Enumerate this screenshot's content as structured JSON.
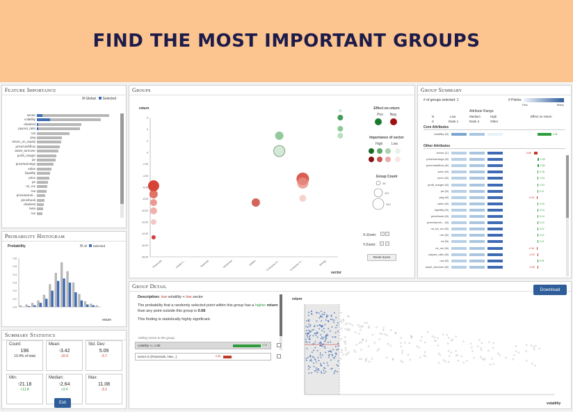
{
  "banner": {
    "title": "FIND THE MOST IMPORTANT GROUPS"
  },
  "feature_importance": {
    "title": "Feature Importance",
    "legend": {
      "global": "Global",
      "selected": "Selected"
    },
    "features": [
      {
        "name": "sector",
        "global": 1.0,
        "selected": 0.08
      },
      {
        "name": "volatility",
        "global": 0.88,
        "selected": 0.18
      },
      {
        "name": "dividend",
        "global": 0.62,
        "selected": 0.02
      },
      {
        "name": "payout_ratio",
        "global": 0.6,
        "selected": 0.02
      },
      {
        "name": "roa",
        "global": 0.45,
        "selected": 0.0
      },
      {
        "name": "peg",
        "global": 0.35,
        "selected": 0.0
      },
      {
        "name": "return_on_equity",
        "global": 0.34,
        "selected": 0.0
      },
      {
        "name": "price/cashflow",
        "global": 0.32,
        "selected": 0.0
      },
      {
        "name": "asset_turnover",
        "global": 0.3,
        "selected": 0.0
      },
      {
        "name": "profit_margin",
        "global": 0.27,
        "selected": 0.0
      },
      {
        "name": "pe",
        "global": 0.26,
        "selected": 0.0
      },
      {
        "name": "price/earnings",
        "global": 0.23,
        "selected": 0.0
      },
      {
        "name": "value",
        "global": 0.2,
        "selected": 0.0
      },
      {
        "name": "liquidity",
        "global": 0.18,
        "selected": 0.0
      },
      {
        "name": "price",
        "global": 0.17,
        "selected": 0.0
      },
      {
        "name": "pe",
        "global": 0.15,
        "selected": 0.0
      },
      {
        "name": "roi_roc",
        "global": 0.14,
        "selected": 0.0
      },
      {
        "name": "roa",
        "global": 0.13,
        "selected": 0.0
      },
      {
        "name": "price/earnin...",
        "global": 0.12,
        "selected": 0.0
      },
      {
        "name": "price/book",
        "global": 0.11,
        "selected": 0.0
      },
      {
        "name": "dividend",
        "global": 0.1,
        "selected": 0.0
      },
      {
        "name": "beta",
        "global": 0.09,
        "selected": 0.0
      },
      {
        "name": "roe",
        "global": 0.08,
        "selected": 0.0
      }
    ]
  },
  "probability_histogram": {
    "title": "Probability Histogram",
    "ylabel": "Probability",
    "xlabel": "return",
    "legend": {
      "all": "All",
      "selected": "Selected"
    },
    "bins": [
      {
        "all": 0.02,
        "selected": 0.0
      },
      {
        "all": 0.03,
        "selected": 0.01
      },
      {
        "all": 0.05,
        "selected": 0.02
      },
      {
        "all": 0.08,
        "selected": 0.05
      },
      {
        "all": 0.15,
        "selected": 0.1
      },
      {
        "all": 0.28,
        "selected": 0.2
      },
      {
        "all": 0.42,
        "selected": 0.32
      },
      {
        "all": 0.55,
        "selected": 0.35
      },
      {
        "all": 0.44,
        "selected": 0.3
      },
      {
        "all": 0.3,
        "selected": 0.18
      },
      {
        "all": 0.16,
        "selected": 0.08
      },
      {
        "all": 0.07,
        "selected": 0.03
      },
      {
        "all": 0.04,
        "selected": 0.02
      },
      {
        "all": 0.02,
        "selected": 0.0
      }
    ],
    "ylim": [
      0,
      0.6
    ]
  },
  "summary_statistics": {
    "title": "Summary Statistics",
    "boxes": [
      {
        "label": "Count:",
        "value": "196",
        "sub": "10.4% of total",
        "kind": "neutral"
      },
      {
        "label": "Mean:",
        "value": "-3.42",
        "sub": "-10.0",
        "kind": "neg"
      },
      {
        "label": "Std. Dev:",
        "value": "5.09",
        "sub": "-3.7",
        "kind": "neg"
      },
      {
        "label": "Min:",
        "value": "-21.18",
        "sub": "+11.8",
        "kind": "pos"
      },
      {
        "label": "Median:",
        "value": "-2.64",
        "sub": "+3.4",
        "kind": "pos"
      },
      {
        "label": "Max:",
        "value": "11.08",
        "sub": "-3.1",
        "kind": "neg"
      }
    ],
    "exit": "Exit"
  },
  "groups": {
    "title": "Groups",
    "ylabel": "return",
    "xlabel": "sector",
    "effect_title": "Effect on return",
    "effect_pos": "Pos",
    "effect_neg": "Neg",
    "importance_title": "Importance of sector",
    "importance_high": "High",
    "importance_low": "Low",
    "count_title": "Group Count",
    "x_zoom": "X-Zoom:",
    "y_zoom": "Y-Zoom:",
    "reset_zoom": "Reset Zoom",
    "sectors": [
      "Financials",
      "Health C...",
      "Materials",
      "Industrials",
      "Utilities",
      "Consumer D...",
      "Consumer S...",
      "Energy"
    ],
    "yticks": [
      "5",
      "4",
      "2",
      "0",
      "-2.00",
      "-4.00",
      "-6.00",
      "-8.00",
      "-10.00",
      "-12.00",
      "-14.00",
      "-16.00",
      "-18.00"
    ]
  },
  "group_summary": {
    "title": "Group Summary",
    "groups_selected": "# of groups selected: 1",
    "points_label": "# Points:",
    "few": "Few",
    "many": "Many",
    "attr_range": "Attribute Range",
    "col_low": "Low",
    "col_medium": "Medium",
    "col_high": "High",
    "col_effect": "Effect on return",
    "col_n": "N",
    "col_c": "C",
    "rank1": "Rank 1",
    "rank2": "Rank 2",
    "other": "Other",
    "core_title": "Core Attributes",
    "core": [
      {
        "name": "volatility (N)",
        "effect": "3.28"
      }
    ],
    "other_title": "Other Attributes",
    "attributes": [
      {
        "name": "sector (C)",
        "effect": "-0.88"
      },
      {
        "name": "price/earnings (N)",
        "effect": "0.32"
      },
      {
        "name": "price/cashflow (N)",
        "effect": "0.28"
      },
      {
        "name": "price (N)",
        "effect": "0.18"
      },
      {
        "name": "pe/ro (N)",
        "effect": "0.24"
      },
      {
        "name": "profit_margin (N)",
        "effect": "0.22"
      },
      {
        "name": "pe (N)",
        "effect": "0.11"
      },
      {
        "name": "peg (N)",
        "effect": "-0.18"
      },
      {
        "name": "value (N)",
        "effect": "0.16"
      },
      {
        "name": "liquidity (N)",
        "effect": "0.14"
      },
      {
        "name": "price/book (N)",
        "effect": "0.14"
      },
      {
        "name": "price/earnin... (N)",
        "effect": "0.13"
      },
      {
        "name": "roi_tot_roc (N)",
        "effect": "0.12"
      },
      {
        "name": "roe (N)",
        "effect": "0.12"
      },
      {
        "name": "roi (N)",
        "effect": "0.11"
      },
      {
        "name": "roi_roc (N)",
        "effect": "-0.16"
      },
      {
        "name": "payout_ratio (N)",
        "effect": "-0.04"
      },
      {
        "name": "roa (N)",
        "effect": "0.09"
      },
      {
        "name": "asset_turnover (N)",
        "effect": "-0.05"
      }
    ]
  },
  "group_detail": {
    "title": "Group Detail",
    "download": "Download",
    "desc_label": "Description:",
    "desc_low1": "low",
    "desc_attr1": "volatility",
    "desc_plus": "+",
    "desc_low2": "low",
    "desc_attr2": "sector",
    "p1": "The probability that a randomly selected point within this group has a",
    "p2a": "higher",
    "p2b": "return",
    "p2c": "than any point outside this group is",
    "p2d": "0.68",
    "p3": "This finding is statistically highly significant.",
    "add_label": "Adding sector to the group:",
    "conditions": [
      {
        "text": "volatility <= 1.86",
        "value": "3.28"
      },
      {
        "text": "sector in {Financials, Hea...}",
        "value": "-0.88"
      }
    ],
    "scatter_ylabel": "return",
    "scatter_xlabel": "volatility"
  }
}
